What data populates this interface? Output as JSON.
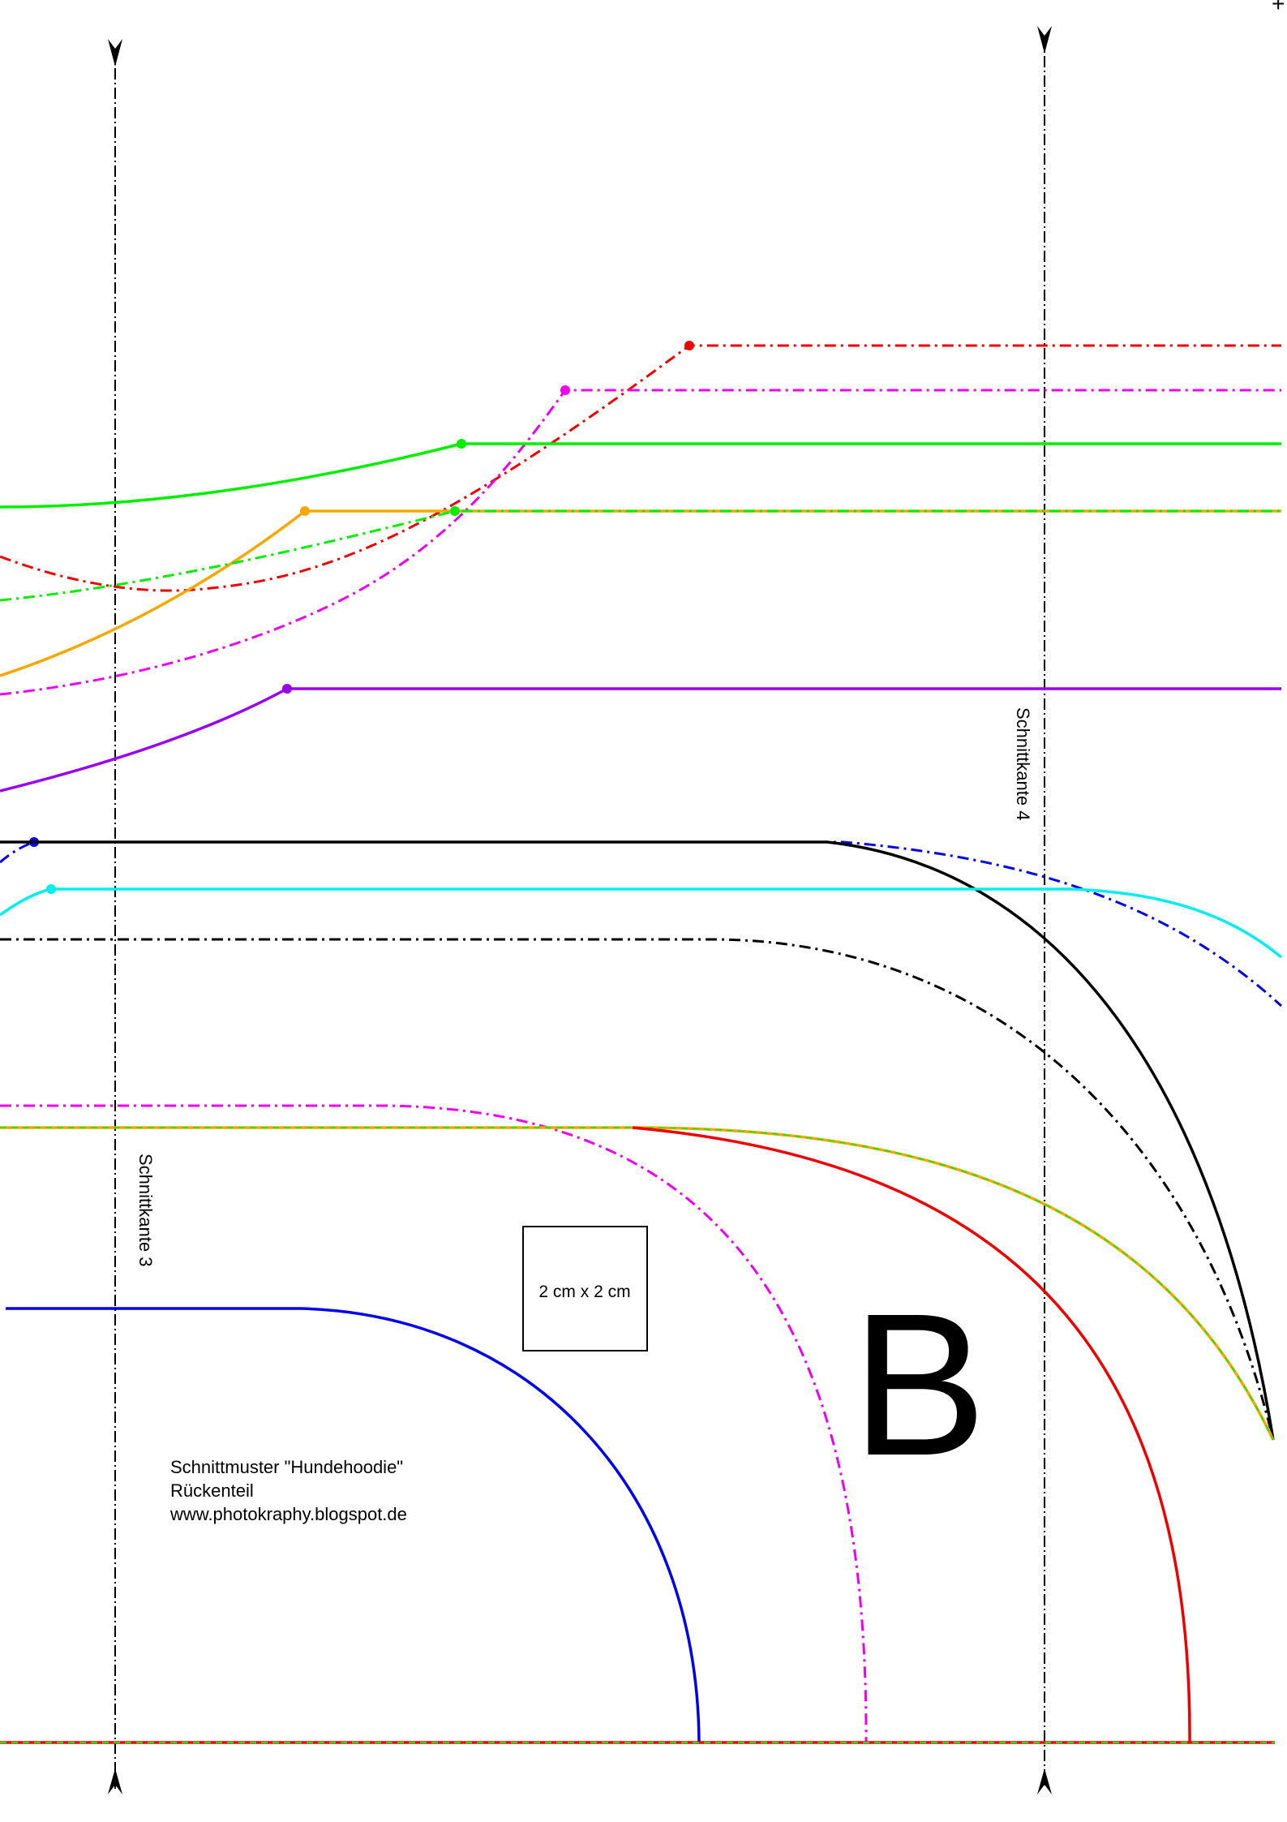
{
  "pattern": {
    "piece_letter": "B",
    "info_lines": [
      "Schnittmuster \"Hundehoodie\"",
      "Rückenteil",
      "www.photokraphy.blogspot.de"
    ],
    "scale_box_label": "2 cm x 2 cm",
    "cut_edge_left": "Schnittkante 3",
    "cut_edge_right": "Schnittkante 4",
    "corner_mark": "+"
  },
  "colors": {
    "green": "#00ee00",
    "red": "#ee0000",
    "magenta": "#ee00ee",
    "orange": "#f5a800",
    "purple": "#9900ee",
    "blue": "#0000ee",
    "cyan": "#00eeee",
    "black": "#000000"
  }
}
